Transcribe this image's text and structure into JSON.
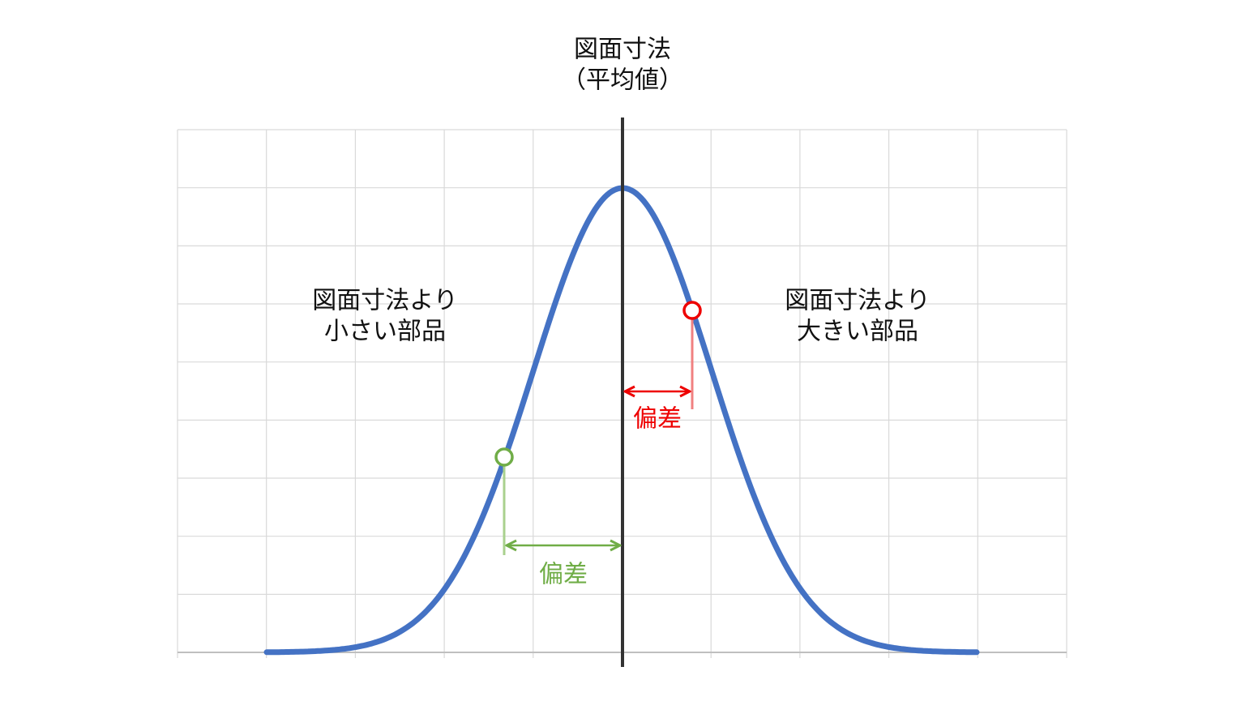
{
  "title": {
    "line1": "図面寸法",
    "line2": "（平均値）"
  },
  "left_label": {
    "line1": "図面寸法より",
    "line2": "小さい部品"
  },
  "right_label": {
    "line1": "図面寸法より",
    "line2": "大きい部品"
  },
  "deviation_right": {
    "label": "偏差"
  },
  "deviation_left": {
    "label": "偏差"
  }
}
